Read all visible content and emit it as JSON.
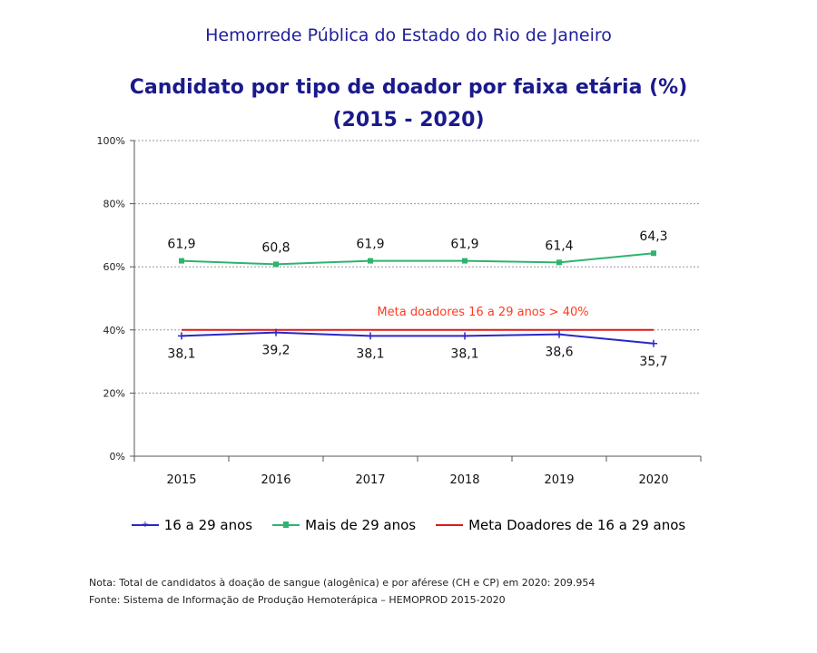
{
  "header": {
    "org": "Hemorrede Pública do Estado do Rio de Janeiro",
    "title": "Candidato por tipo de doador por faixa etária (%)",
    "subtitle": "(2015 - 2020)"
  },
  "chart_data": {
    "type": "line",
    "categories": [
      "2015",
      "2016",
      "2017",
      "2018",
      "2019",
      "2020"
    ],
    "ylim": [
      0,
      100
    ],
    "yticks": [
      "0%",
      "20%",
      "40%",
      "60%",
      "80%",
      "100%"
    ],
    "grid": true,
    "series": [
      {
        "name": "16 a 29 anos",
        "color": "#2828c8",
        "marker": "cross",
        "values": [
          38.1,
          39.2,
          38.1,
          38.1,
          38.6,
          35.7
        ],
        "labels": [
          "38,1",
          "39,2",
          "38,1",
          "38,1",
          "38,6",
          "35,7"
        ]
      },
      {
        "name": "Mais de 29 anos",
        "color": "#2eb46e",
        "marker": "square",
        "values": [
          61.9,
          60.8,
          61.9,
          61.9,
          61.4,
          64.3
        ],
        "labels": [
          "61,9",
          "60,8",
          "61,9",
          "61,9",
          "61,4",
          "64,3"
        ]
      },
      {
        "name": "Meta Doadores de 16 a 29 anos",
        "color": "#e01818",
        "marker": "none",
        "values": [
          40,
          40,
          40,
          40,
          40,
          40
        ]
      }
    ],
    "annotation": {
      "text": "Meta doadores 16 a 29 anos > 40%",
      "color": "#ff3b1f"
    },
    "legend_position": "bottom"
  },
  "notes": {
    "note": "Nota: Total de candidatos à doação de sangue (alogênica) e por aférese (CH e CP) em 2020: 209.954",
    "source": "Fonte: Sistema de Informação de Produção Hemoterápica – HEMOPROD 2015-2020"
  }
}
